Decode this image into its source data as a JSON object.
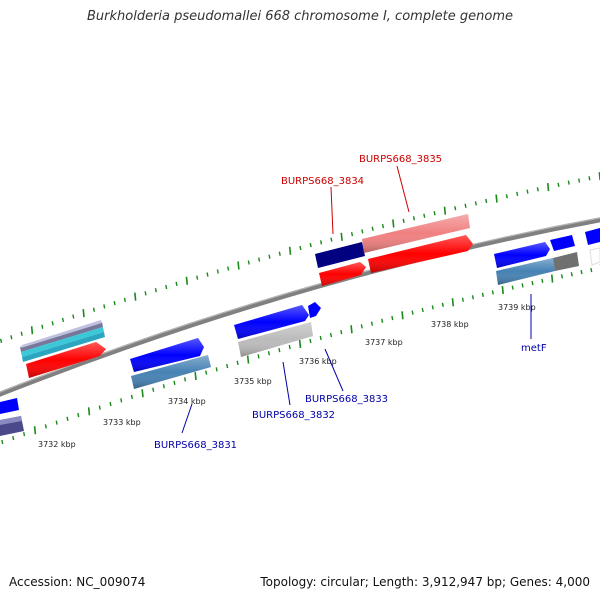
{
  "header": {
    "title": "Burkholderia pseudomallei 668 chromosome I, complete genome"
  },
  "footer": {
    "accession": "Accession: NC_009074",
    "summary": "Topology: circular; Length: 3,912,947 bp; Genes: 4,000"
  },
  "ruler": {
    "ticks": [
      {
        "label": "3732 kbp"
      },
      {
        "label": "3733 kbp"
      },
      {
        "label": "3734 kbp"
      },
      {
        "label": "3735 kbp"
      },
      {
        "label": "3736 kbp"
      },
      {
        "label": "3737 kbp"
      },
      {
        "label": "3738 kbp"
      },
      {
        "label": "3739 kbp"
      }
    ],
    "tick_color": "#1a8a1a"
  },
  "genes": {
    "forward_labels": [
      {
        "name": "BURPS668_3834",
        "color": "#cc0000"
      },
      {
        "name": "BURPS668_3835",
        "color": "#cc0000"
      }
    ],
    "reverse_labels": [
      {
        "name": "BURPS668_3831",
        "color": "#0000aa"
      },
      {
        "name": "BURPS668_3832",
        "color": "#0000aa"
      },
      {
        "name": "BURPS668_3833",
        "color": "#0000aa"
      },
      {
        "name": "metF",
        "color": "#0000aa"
      }
    ]
  },
  "colors": {
    "backbone": "#808080",
    "forward_cds": "#ff0000",
    "forward_cds_light": "#f08080",
    "reverse_cds": "#0000ff",
    "steelblue": "#4682b4",
    "navy": "#000080",
    "gray_feature": "#bbbbbb"
  }
}
